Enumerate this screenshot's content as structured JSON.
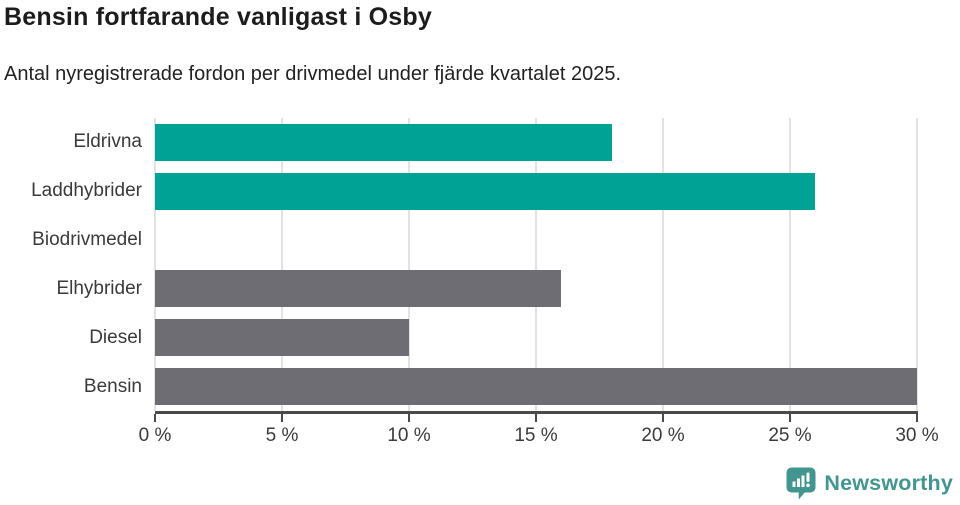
{
  "header": {
    "title": "Bensin fortfarande vanligast i Osby",
    "subtitle": "Antal nyregistrerade fordon per drivmedel under fjärde kvartalet 2025."
  },
  "chart_data": {
    "type": "bar",
    "orientation": "horizontal",
    "title": "Bensin fortfarande vanligast i Osby",
    "subtitle": "Antal nyregistrerade fordon per drivmedel under fjärde kvartalet 2025.",
    "categories": [
      "Eldrivna",
      "Laddhybrider",
      "Biodrivmedel",
      "Elhybrider",
      "Diesel",
      "Bensin"
    ],
    "values": [
      18,
      26,
      0,
      16,
      10,
      30
    ],
    "unit": "%",
    "xlabel": "",
    "ylabel": "",
    "xlim": [
      0,
      30
    ],
    "x_ticks": [
      0,
      5,
      10,
      15,
      20,
      25,
      30
    ],
    "x_tick_labels": [
      "0 %",
      "5 %",
      "10 %",
      "15 %",
      "20 %",
      "25 %",
      "30 %"
    ],
    "bar_colors": [
      "#00a296",
      "#00a296",
      "#00a296",
      "#6e6d74",
      "#6e6d74",
      "#6e6d74"
    ],
    "grid": "vertical-only",
    "legend": "none"
  },
  "colors": {
    "accent_teal": "#00a296",
    "neutral_gray": "#6e6d74",
    "gridline": "#e2e2e5",
    "axis": "#4a4a4a",
    "logo": "#43968f"
  },
  "footer": {
    "brand": "Newsworthy"
  }
}
